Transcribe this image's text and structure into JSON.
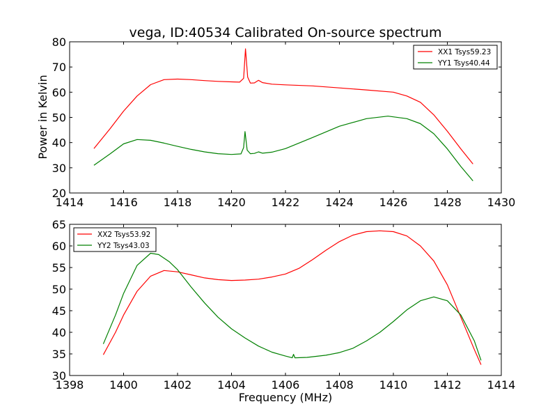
{
  "page": {
    "title": "vega, ID:40534 Calibrated On-source spectrum"
  },
  "chart_data": [
    {
      "type": "line",
      "title": "vega, ID:40534 Calibrated On-source spectrum",
      "xlabel": "",
      "ylabel": "Power in Kelvin",
      "xlim": [
        1414,
        1430
      ],
      "ylim": [
        20,
        80
      ],
      "xticks": [
        "1414",
        "1416",
        "1418",
        "1420",
        "1422",
        "1424",
        "1426",
        "1428",
        "1430"
      ],
      "yticks": [
        "20",
        "30",
        "40",
        "50",
        "60",
        "70",
        "80"
      ],
      "legend_position": "top-right",
      "grid": false,
      "series": [
        {
          "name": "XX1 Tsys59.23",
          "color": "#ff0000",
          "points": [
            [
              1414.9,
              37.6
            ],
            [
              1415.5,
              45.5
            ],
            [
              1416.0,
              52.5
            ],
            [
              1416.5,
              58.5
            ],
            [
              1417.0,
              63.0
            ],
            [
              1417.5,
              65.0
            ],
            [
              1418.0,
              65.2
            ],
            [
              1418.5,
              65.0
            ],
            [
              1419.0,
              64.6
            ],
            [
              1419.5,
              64.3
            ],
            [
              1420.0,
              64.1
            ],
            [
              1420.3,
              64.0
            ],
            [
              1420.45,
              65.5
            ],
            [
              1420.52,
              77.2
            ],
            [
              1420.6,
              66.0
            ],
            [
              1420.7,
              63.6
            ],
            [
              1420.85,
              63.7
            ],
            [
              1421.0,
              64.7
            ],
            [
              1421.15,
              63.8
            ],
            [
              1421.5,
              63.2
            ],
            [
              1422.0,
              62.9
            ],
            [
              1423.0,
              62.5
            ],
            [
              1424.0,
              61.7
            ],
            [
              1425.0,
              60.9
            ],
            [
              1426.0,
              60.0
            ],
            [
              1426.5,
              58.5
            ],
            [
              1427.0,
              56.0
            ],
            [
              1427.5,
              51.0
            ],
            [
              1428.0,
              44.5
            ],
            [
              1428.5,
              37.5
            ],
            [
              1428.95,
              31.5
            ]
          ]
        },
        {
          "name": "YY1 Tsys40.44",
          "color": "#008000",
          "points": [
            [
              1414.9,
              31.0
            ],
            [
              1415.5,
              35.5
            ],
            [
              1416.0,
              39.5
            ],
            [
              1416.5,
              41.2
            ],
            [
              1417.0,
              40.9
            ],
            [
              1417.5,
              39.8
            ],
            [
              1418.0,
              38.5
            ],
            [
              1418.5,
              37.3
            ],
            [
              1419.0,
              36.3
            ],
            [
              1419.5,
              35.6
            ],
            [
              1420.0,
              35.3
            ],
            [
              1420.35,
              35.5
            ],
            [
              1420.45,
              38.0
            ],
            [
              1420.5,
              44.4
            ],
            [
              1420.58,
              37.0
            ],
            [
              1420.7,
              35.6
            ],
            [
              1420.85,
              35.7
            ],
            [
              1421.0,
              36.3
            ],
            [
              1421.15,
              35.8
            ],
            [
              1421.5,
              36.2
            ],
            [
              1422.0,
              37.6
            ],
            [
              1423.0,
              42.0
            ],
            [
              1424.0,
              46.5
            ],
            [
              1425.0,
              49.5
            ],
            [
              1425.8,
              50.5
            ],
            [
              1426.5,
              49.5
            ],
            [
              1427.0,
              47.5
            ],
            [
              1427.5,
              43.5
            ],
            [
              1428.0,
              37.5
            ],
            [
              1428.5,
              30.5
            ],
            [
              1428.95,
              24.8
            ]
          ]
        }
      ]
    },
    {
      "type": "line",
      "title": "",
      "xlabel": "Frequency (MHz)",
      "ylabel": "",
      "xlim": [
        1398,
        1414
      ],
      "ylim": [
        30,
        65
      ],
      "xticks": [
        "1398",
        "1400",
        "1402",
        "1404",
        "1406",
        "1408",
        "1410",
        "1412",
        "1414"
      ],
      "yticks": [
        "30",
        "35",
        "40",
        "45",
        "50",
        "55",
        "60",
        "65"
      ],
      "legend_position": "top-left",
      "grid": false,
      "series": [
        {
          "name": "XX2 Tsys53.92",
          "color": "#ff0000",
          "points": [
            [
              1399.25,
              34.8
            ],
            [
              1399.7,
              40.0
            ],
            [
              1400.0,
              44.0
            ],
            [
              1400.5,
              49.5
            ],
            [
              1401.0,
              53.0
            ],
            [
              1401.5,
              54.3
            ],
            [
              1402.0,
              54.0
            ],
            [
              1402.5,
              53.3
            ],
            [
              1403.0,
              52.6
            ],
            [
              1403.5,
              52.2
            ],
            [
              1404.0,
              52.0
            ],
            [
              1404.5,
              52.1
            ],
            [
              1405.0,
              52.3
            ],
            [
              1405.5,
              52.8
            ],
            [
              1406.0,
              53.5
            ],
            [
              1406.5,
              54.8
            ],
            [
              1407.0,
              56.8
            ],
            [
              1407.5,
              59.0
            ],
            [
              1408.0,
              61.0
            ],
            [
              1408.5,
              62.5
            ],
            [
              1409.0,
              63.3
            ],
            [
              1409.5,
              63.5
            ],
            [
              1410.0,
              63.3
            ],
            [
              1410.5,
              62.3
            ],
            [
              1411.0,
              60.0
            ],
            [
              1411.5,
              56.5
            ],
            [
              1412.0,
              51.0
            ],
            [
              1412.5,
              43.5
            ],
            [
              1413.0,
              36.0
            ],
            [
              1413.25,
              32.5
            ]
          ]
        },
        {
          "name": "YY2 Tsys43.03",
          "color": "#008000",
          "points": [
            [
              1399.25,
              37.3
            ],
            [
              1399.7,
              44.0
            ],
            [
              1400.0,
              49.0
            ],
            [
              1400.5,
              55.5
            ],
            [
              1401.0,
              58.3
            ],
            [
              1401.3,
              58.0
            ],
            [
              1401.7,
              56.3
            ],
            [
              1402.0,
              54.5
            ],
            [
              1402.5,
              50.5
            ],
            [
              1403.0,
              46.8
            ],
            [
              1403.5,
              43.5
            ],
            [
              1404.0,
              40.8
            ],
            [
              1404.5,
              38.7
            ],
            [
              1405.0,
              36.8
            ],
            [
              1405.5,
              35.4
            ],
            [
              1406.0,
              34.5
            ],
            [
              1406.25,
              34.1
            ],
            [
              1406.3,
              34.9
            ],
            [
              1406.35,
              34.1
            ],
            [
              1406.8,
              34.2
            ],
            [
              1407.5,
              34.7
            ],
            [
              1408.0,
              35.3
            ],
            [
              1408.5,
              36.3
            ],
            [
              1409.0,
              38.0
            ],
            [
              1409.5,
              40.0
            ],
            [
              1410.0,
              42.5
            ],
            [
              1410.5,
              45.2
            ],
            [
              1411.0,
              47.3
            ],
            [
              1411.5,
              48.2
            ],
            [
              1412.0,
              47.3
            ],
            [
              1412.5,
              44.0
            ],
            [
              1413.0,
              38.0
            ],
            [
              1413.25,
              33.5
            ]
          ]
        }
      ]
    }
  ]
}
